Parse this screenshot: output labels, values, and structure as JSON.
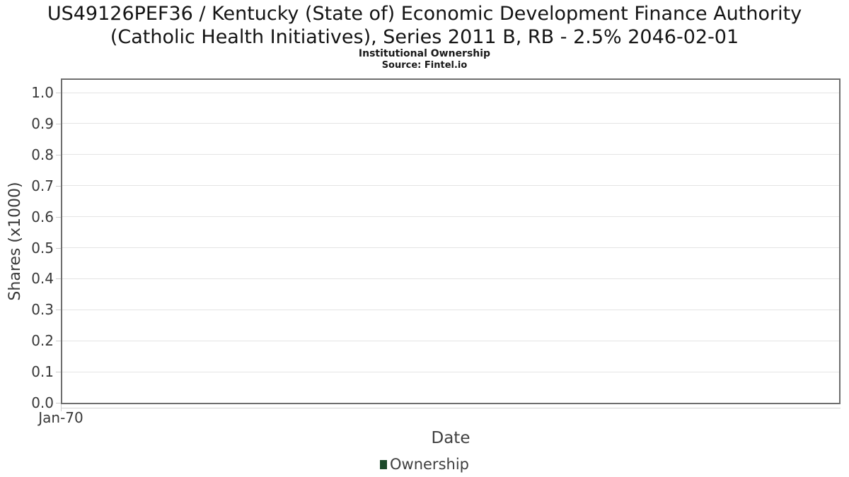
{
  "header": {
    "title_lines": [
      "US49126PEF36 / Kentucky (State of) Economic Development Finance Authority",
      "(Catholic Health Initiatives), Series 2011 B, RB - 2.5% 2046-02-01"
    ],
    "subtitle": "Institutional Ownership",
    "source": "Source: Fintel.io"
  },
  "chart_data": {
    "type": "area",
    "title": "US49126PEF36 / Kentucky (State of) Economic Development Finance Authority (Catholic Health Initiatives), Series 2011 B, RB - 2.5% 2046-02-01",
    "subtitle": "Institutional Ownership",
    "source": "Source: Fintel.io",
    "xlabel": "Date",
    "ylabel": "Shares (x1000)",
    "x_ticks": [
      "Jan-70"
    ],
    "y_ticks": [
      0.0,
      0.1,
      0.2,
      0.3,
      0.4,
      0.5,
      0.6,
      0.7,
      0.8,
      0.9,
      1.0
    ],
    "ylim": [
      0.0,
      1.04
    ],
    "grid": true,
    "legend_position": "bottom",
    "series": [
      {
        "name": "Ownership",
        "color": "#1c4a2b",
        "values": []
      }
    ],
    "note": "empty plot - no data points rendered"
  },
  "colors": {
    "plot_border": "#6e6e6e",
    "gridline": "#e4e4e4",
    "tick": "#cccccc",
    "tick_text": "#383838",
    "axis_title_text": "#3f3f3f",
    "legend_green": "#1c4a2b"
  }
}
